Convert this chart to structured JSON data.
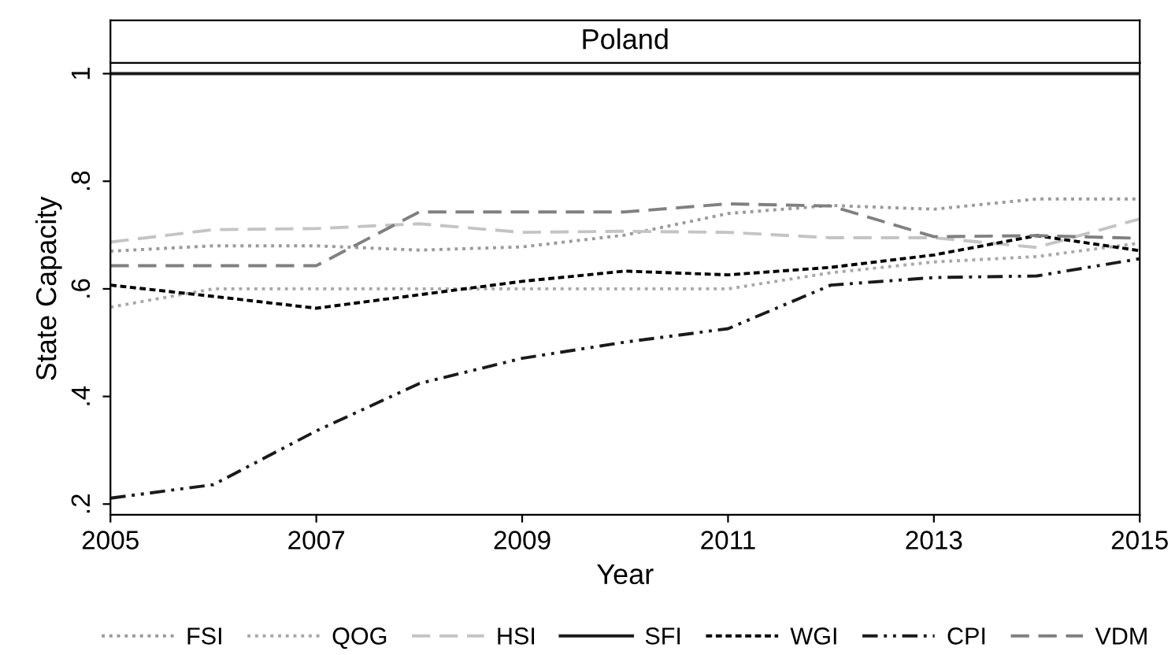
{
  "chart_data": {
    "type": "line",
    "title": "Poland",
    "xlabel": "Year",
    "ylabel": "State Capacity",
    "x": [
      2005,
      2006,
      2007,
      2008,
      2009,
      2010,
      2011,
      2012,
      2013,
      2014,
      2015
    ],
    "xlim": [
      2005,
      2015
    ],
    "xticks": [
      2005,
      2007,
      2009,
      2011,
      2013,
      2015
    ],
    "ylim": [
      0.18,
      1.02
    ],
    "yticks": [
      {
        "value": 0.2,
        "label": ".2"
      },
      {
        "value": 0.4,
        "label": ".4"
      },
      {
        "value": 0.6,
        "label": ".6"
      },
      {
        "value": 0.8,
        "label": ".8"
      },
      {
        "value": 1,
        "label": "1"
      }
    ],
    "grid": false,
    "legend": "bottom",
    "marker": "none",
    "series": [
      {
        "name": "FSI",
        "color": "#9a9a9a",
        "line_style": "dotted",
        "values": [
          0.67,
          0.68,
          0.68,
          0.672,
          0.678,
          0.7,
          0.74,
          0.755,
          0.748,
          0.767,
          0.767
        ]
      },
      {
        "name": "QOG",
        "color": "#a8a8a8",
        "line_style": "dotted",
        "values": [
          0.566,
          0.6,
          0.6,
          0.6,
          0.6,
          0.6,
          0.6,
          0.63,
          0.65,
          0.66,
          0.685
        ]
      },
      {
        "name": "HSI",
        "color": "#c4c4c4",
        "line_style": "dashed",
        "values": [
          0.687,
          0.71,
          0.712,
          0.721,
          0.705,
          0.707,
          0.705,
          0.695,
          0.695,
          0.677,
          0.73
        ]
      },
      {
        "name": "SFI",
        "color": "#1a1a1a",
        "line_style": "solid",
        "values": [
          1,
          1,
          1,
          1,
          1,
          1,
          1,
          1,
          1,
          1,
          1
        ]
      },
      {
        "name": "WGI",
        "color": "#000000",
        "line_style": "dashed",
        "values": [
          0.607,
          0.586,
          0.564,
          0.589,
          0.614,
          0.633,
          0.626,
          0.64,
          0.663,
          0.699,
          0.671
        ]
      },
      {
        "name": "CPI",
        "color": "#1a1a1a",
        "line_style": "dashdot",
        "values": [
          0.211,
          0.236,
          0.336,
          0.424,
          0.471,
          0.501,
          0.526,
          0.607,
          0.621,
          0.624,
          0.656
        ]
      },
      {
        "name": "VDM",
        "color": "#808080",
        "line_style": "dashed",
        "values": [
          0.643,
          0.643,
          0.643,
          0.743,
          0.743,
          0.743,
          0.758,
          0.754,
          0.697,
          0.699,
          0.694
        ]
      }
    ]
  }
}
